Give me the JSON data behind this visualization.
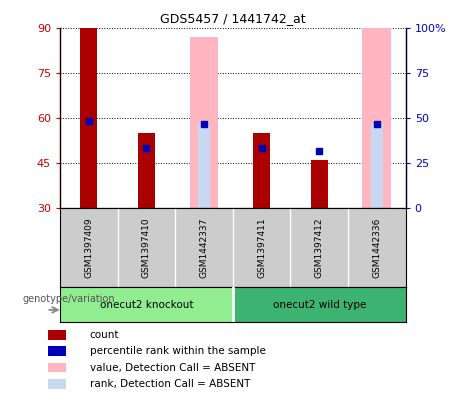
{
  "title": "GDS5457 / 1441742_at",
  "samples": [
    "GSM1397409",
    "GSM1397410",
    "GSM1442337",
    "GSM1397411",
    "GSM1397412",
    "GSM1442336"
  ],
  "group_labels": [
    "onecut2 knockout",
    "onecut2 wild type"
  ],
  "group_ko_color": "#90EE90",
  "group_wt_color": "#3CB371",
  "count_values": [
    90,
    55,
    30,
    55,
    46,
    30
  ],
  "rank_values": [
    59,
    50,
    58,
    50,
    49,
    58
  ],
  "absent_value_bars": [
    null,
    null,
    87,
    null,
    null,
    90
  ],
  "absent_rank_bars": [
    null,
    null,
    58,
    null,
    null,
    58
  ],
  "ylim_left": [
    30,
    90
  ],
  "ylim_right": [
    0,
    100
  ],
  "yticks_left": [
    30,
    45,
    60,
    75,
    90
  ],
  "yticks_right": [
    0,
    25,
    50,
    75,
    100
  ],
  "count_color": "#AA0000",
  "rank_color": "#0000BB",
  "absent_value_color": "#FFB6C1",
  "absent_rank_color": "#C8D8F0",
  "bg_color": "#FFFFFF",
  "left_tick_color": "#CC0000",
  "right_tick_color": "#0000CC",
  "sample_area_color": "#CCCCCC",
  "xlabel": "genotype/variation"
}
